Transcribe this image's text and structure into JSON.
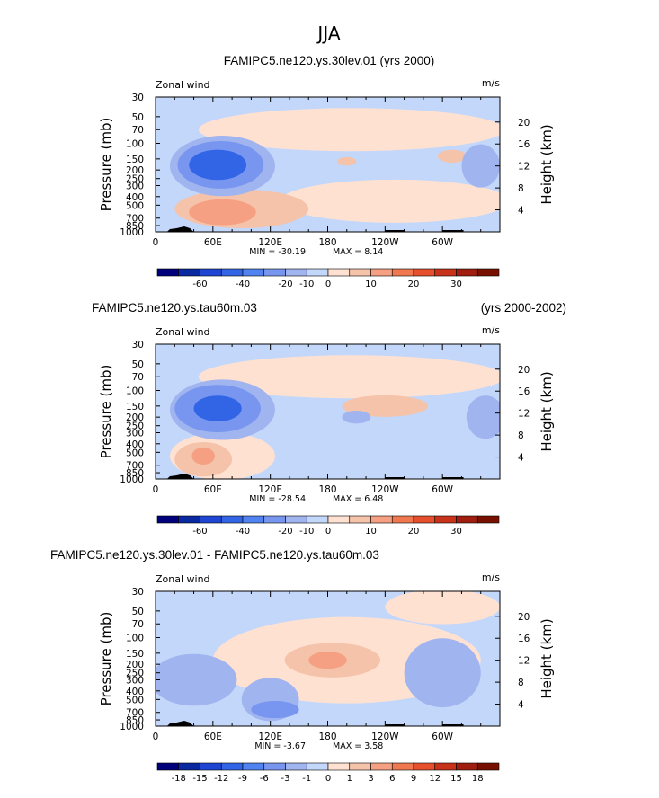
{
  "page_title": "JJA",
  "chart_data": [
    {
      "type": "heatmap",
      "title": "FAMIPC5.ne120.ys.30lev.01 (yrs 2000)",
      "title_right": "",
      "variable_label": "Zonal wind",
      "units": "m/s",
      "ylabel": "Pressure (mb)",
      "ylabel_right": "Height (km)",
      "x_ticks": [
        "0",
        "60E",
        "120E",
        "180",
        "120W",
        "60W"
      ],
      "y_ticks": [
        "30",
        "50",
        "70",
        "100",
        "150",
        "200",
        "250",
        "300",
        "400",
        "500",
        "700",
        "850",
        "1000"
      ],
      "height_ticks": [
        "20",
        "16",
        "12",
        "8",
        "4"
      ],
      "min_label": "MIN = -30.19",
      "max_label": "MAX = 8.14",
      "colorbar_labels": [
        "-60",
        "-40",
        "-20",
        "-10",
        "0",
        "10",
        "20",
        "30"
      ],
      "colorbar_colors": [
        "#00007a",
        "#0a28a0",
        "#1e46d2",
        "#3264e6",
        "#5082f0",
        "#7896f0",
        "#a0b4f0",
        "#c3d7fa",
        "#ffe1d2",
        "#f5c3aa",
        "#f5a082",
        "#f07850",
        "#e6502d",
        "#c83219",
        "#a01e0f",
        "#781000"
      ],
      "features": [
        {
          "name": "jet-core",
          "value": -30.19,
          "lon": 65,
          "pressure": 175
        },
        {
          "name": "surface-westerly",
          "value": 8.14,
          "lon": 70,
          "pressure": 650
        }
      ]
    },
    {
      "type": "heatmap",
      "title": "FAMIPC5.ne120.ys.tau60m.03",
      "title_right": "(yrs 2000-2002)",
      "variable_label": "Zonal wind",
      "units": "m/s",
      "ylabel": "Pressure (mb)",
      "ylabel_right": "Height (km)",
      "x_ticks": [
        "0",
        "60E",
        "120E",
        "180",
        "120W",
        "60W"
      ],
      "y_ticks": [
        "30",
        "50",
        "70",
        "100",
        "150",
        "200",
        "250",
        "300",
        "400",
        "500",
        "700",
        "850",
        "1000"
      ],
      "height_ticks": [
        "20",
        "16",
        "12",
        "8",
        "4"
      ],
      "min_label": "MIN = -28.54",
      "max_label": "MAX = 6.48",
      "colorbar_labels": [
        "-60",
        "-40",
        "-20",
        "-10",
        "0",
        "10",
        "20",
        "30"
      ],
      "colorbar_colors": [
        "#00007a",
        "#0a28a0",
        "#1e46d2",
        "#3264e6",
        "#5082f0",
        "#7896f0",
        "#a0b4f0",
        "#c3d7fa",
        "#ffe1d2",
        "#f5c3aa",
        "#f5a082",
        "#f07850",
        "#e6502d",
        "#c83219",
        "#a01e0f",
        "#781000"
      ],
      "features": [
        {
          "name": "jet-core",
          "value": -28.54,
          "lon": 65,
          "pressure": 160
        },
        {
          "name": "surface-westerly",
          "value": 6.48,
          "lon": 55,
          "pressure": 600
        }
      ]
    },
    {
      "type": "heatmap",
      "title": "FAMIPC5.ne120.ys.30lev.01 - FAMIPC5.ne120.ys.tau60m.03",
      "title_right": "",
      "variable_label": "Zonal wind",
      "units": "m/s",
      "ylabel": "Pressure (mb)",
      "ylabel_right": "Height (km)",
      "x_ticks": [
        "0",
        "60E",
        "120E",
        "180",
        "120W",
        "60W"
      ],
      "y_ticks": [
        "30",
        "50",
        "70",
        "100",
        "150",
        "200",
        "250",
        "300",
        "400",
        "500",
        "700",
        "850",
        "1000"
      ],
      "height_ticks": [
        "20",
        "16",
        "12",
        "8",
        "4"
      ],
      "min_label": "MIN = -3.67",
      "max_label": "MAX = 3.58",
      "colorbar_labels": [
        "-18",
        "-15",
        "-12",
        "-9",
        "-6",
        "-3",
        "-1",
        "0",
        "1",
        "3",
        "6",
        "9",
        "12",
        "15",
        "18"
      ],
      "colorbar_colors": [
        "#00007a",
        "#0a28a0",
        "#1e46d2",
        "#3264e6",
        "#5082f0",
        "#7896f0",
        "#a0b4f0",
        "#c3d7fa",
        "#ffe1d2",
        "#f5c3aa",
        "#f5a082",
        "#f07850",
        "#e6502d",
        "#c83219",
        "#a01e0f",
        "#781000"
      ],
      "features": [
        {
          "name": "diff-positive",
          "value": 3.58,
          "lon": 180,
          "pressure": 180
        },
        {
          "name": "diff-negative",
          "value": -3.67,
          "lon": 300,
          "pressure": 250
        }
      ]
    }
  ]
}
